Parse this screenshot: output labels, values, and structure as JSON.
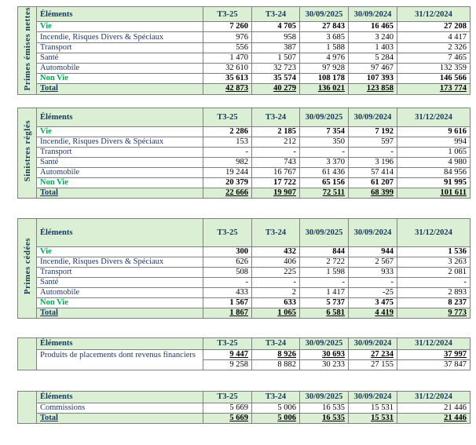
{
  "colors": {
    "accent_green": "#00A650",
    "header_navy": "#17375D",
    "band_green": "#DAEFD3",
    "border_gray": "#808080"
  },
  "columns": [
    "Éléments",
    "T3-25",
    "T3-24",
    "30/09/2025",
    "30/09/2024",
    "31/12/2024"
  ],
  "tables": [
    {
      "side_label": "Primes émises nettes",
      "rows": [
        {
          "label": "Vie",
          "style": "green",
          "values": [
            "7 260",
            "4 705",
            "27 843",
            "16 465",
            "27 208"
          ]
        },
        {
          "label": "Incendie, Risques Divers & Spéciaux",
          "style": "plain",
          "values": [
            "976",
            "958",
            "3 685",
            "3 240",
            "4 417"
          ]
        },
        {
          "label": "Transport",
          "style": "plain",
          "values": [
            "556",
            "387",
            "1 588",
            "1 403",
            "2 326"
          ]
        },
        {
          "label": "Santé",
          "style": "plain",
          "values": [
            "1 470",
            "1 507",
            "4 976",
            "5 284",
            "7 465"
          ]
        },
        {
          "label": "Automobile",
          "style": "plain",
          "values": [
            "32 610",
            "32 723",
            "97 928",
            "97 467",
            "132 359"
          ]
        },
        {
          "label": "Non Vie",
          "style": "green",
          "values": [
            "35 613",
            "35 574",
            "108 178",
            "107 393",
            "146 566"
          ]
        },
        {
          "label": "Total",
          "style": "total",
          "values": [
            "42 873",
            "40 279",
            "136 021",
            "123 858",
            "173 774"
          ]
        }
      ]
    },
    {
      "side_label": "Sinistres réglés",
      "rows": [
        {
          "label": "Vie",
          "style": "green",
          "values": [
            "2 286",
            "2 185",
            "7 354",
            "7 192",
            "9 616"
          ]
        },
        {
          "label": "Incendie, Risques Divers & Spéciaux",
          "style": "plain",
          "values": [
            "153",
            "212",
            "350",
            "597",
            "994"
          ]
        },
        {
          "label": "Transport",
          "style": "plain",
          "values": [
            "-",
            "-",
            "-",
            "-",
            "1 065"
          ]
        },
        {
          "label": "Santé",
          "style": "plain",
          "values": [
            "982",
            "743",
            "3 370",
            "3 196",
            "4 980"
          ]
        },
        {
          "label": "Automobile",
          "style": "plain",
          "values": [
            "19 244",
            "16 767",
            "61 436",
            "57 414",
            "84 956"
          ]
        },
        {
          "label": "Non Vie",
          "style": "green",
          "values": [
            "20 379",
            "17 722",
            "65 156",
            "61 207",
            "91 995"
          ]
        },
        {
          "label": "Total",
          "style": "total",
          "values": [
            "22 666",
            "19 907",
            "72 511",
            "68 399",
            "101 611"
          ]
        }
      ]
    },
    {
      "side_label": "Primes cédées",
      "rows": [
        {
          "label": "Vie",
          "style": "green",
          "values": [
            "300",
            "432",
            "844",
            "944",
            "1 536"
          ]
        },
        {
          "label": "Incendie, Risques Divers & Spéciaux",
          "style": "plain",
          "values": [
            "626",
            "406",
            "2 722",
            "2 567",
            "3 263"
          ]
        },
        {
          "label": "Transport",
          "style": "plain",
          "values": [
            "508",
            "225",
            "1 598",
            "933",
            "2 081"
          ]
        },
        {
          "label": "Santé",
          "style": "plain",
          "values": [
            "-",
            "-",
            "-",
            "-",
            "-"
          ]
        },
        {
          "label": "Automobile",
          "style": "plain",
          "values": [
            "433",
            "2",
            "1 417",
            "-25",
            "2 893"
          ]
        },
        {
          "label": "Non Vie",
          "style": "green",
          "values": [
            "1 567",
            "633",
            "5 737",
            "3 475",
            "8 237"
          ]
        },
        {
          "label": "Total",
          "style": "total",
          "values": [
            "1 867",
            "1 065",
            "6 581",
            "4 419",
            "9 773"
          ]
        }
      ]
    },
    {
      "side_label": "",
      "rows": [
        {
          "label": "Produits de placements dont revenus financiers",
          "label_rowspan": 2,
          "style": "ub",
          "values": [
            "9 447",
            "8 926",
            "30 693",
            "27 234",
            "37 997"
          ]
        },
        {
          "label": null,
          "style": "plain",
          "values": [
            "9 258",
            "8 882",
            "30 233",
            "27 155",
            "37 847"
          ]
        }
      ]
    },
    {
      "side_label": "",
      "rows": [
        {
          "label": "Commissions",
          "style": "plain",
          "values": [
            "5 669",
            "5 006",
            "16 535",
            "15 531",
            "21 446"
          ]
        },
        {
          "label": "Total",
          "style": "total",
          "values": [
            "5 669",
            "5 006",
            "16 535",
            "15 531",
            "21 446"
          ]
        }
      ]
    }
  ]
}
